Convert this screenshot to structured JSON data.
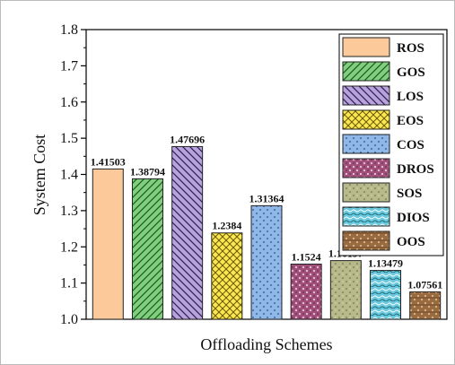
{
  "chart_data": {
    "type": "bar",
    "xlabel": "Offloading Schemes",
    "ylabel": "System Cost",
    "ylim": [
      1.0,
      1.8
    ],
    "yticks": [
      "1.0",
      "1.1",
      "1.2",
      "1.3",
      "1.4",
      "1.5",
      "1.6",
      "1.7",
      "1.8"
    ],
    "grid": false,
    "legend_position": "top-right",
    "categories": [
      "ROS",
      "GOS",
      "LOS",
      "EOS",
      "COS",
      "DROS",
      "SOS",
      "DIOS",
      "OOS"
    ],
    "values": [
      1.41503,
      1.38794,
      1.47696,
      1.2384,
      1.31364,
      1.1524,
      1.16197,
      1.13479,
      1.07561
    ],
    "value_labels": [
      "1.41503",
      "1.38794",
      "1.47696",
      "1.2384",
      "1.31364",
      "1.1524",
      "1.16197",
      "1.13479",
      "1.07561"
    ],
    "colors": [
      "#fbc99a",
      "#7fcf7f",
      "#b9a2dc",
      "#fbe74f",
      "#8fb7e8",
      "#a0507a",
      "#b8b98a",
      "#6ac9dc",
      "#9a6b3f"
    ],
    "patterns": [
      "solid",
      "diag-right",
      "diag-left",
      "crosshatch",
      "dots",
      "dense-dots",
      "fine-dots",
      "waves",
      "brick-dots"
    ]
  }
}
